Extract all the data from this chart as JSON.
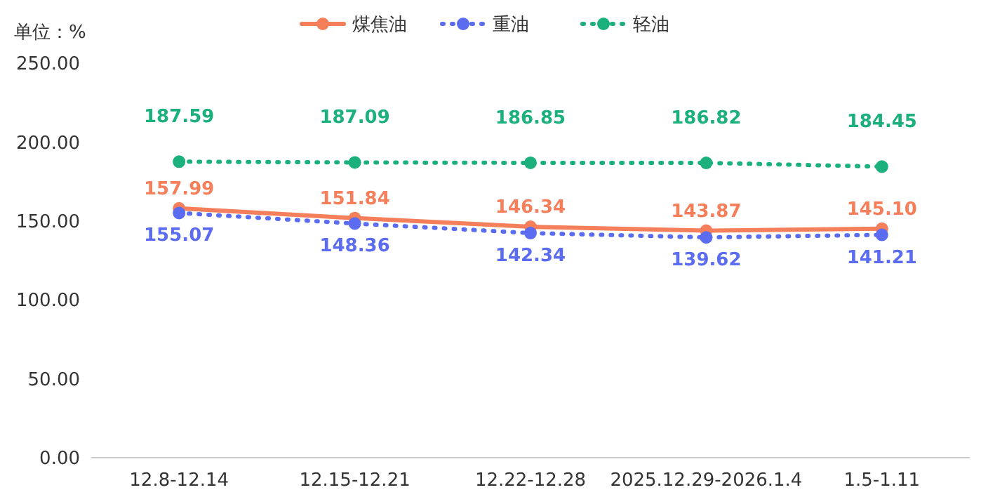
{
  "chart_data": {
    "type": "line",
    "ylabel": "单位：%",
    "categories": [
      "12.8-12.14",
      "12.15-12.21",
      "12.22-12.28",
      "2025.12.29-2026.1.4",
      "1.5-1.11"
    ],
    "ylim": [
      0,
      250
    ],
    "yticks": [
      {
        "value": 0,
        "label": "0.00"
      },
      {
        "value": 50,
        "label": "50.00"
      },
      {
        "value": 100,
        "label": "100.00"
      },
      {
        "value": 150,
        "label": "150.00"
      },
      {
        "value": 200,
        "label": "200.00"
      },
      {
        "value": 250,
        "label": "250.00"
      }
    ],
    "grid": false,
    "legend": "top",
    "marker": "circle",
    "series": [
      {
        "name": "煤焦油",
        "color": "#f47f5a",
        "line_style": "solid",
        "values": [
          157.99,
          151.84,
          146.34,
          143.87,
          145.1
        ],
        "value_labels": [
          "157.99",
          "151.84",
          "146.34",
          "143.87",
          "145.10"
        ]
      },
      {
        "name": "重油",
        "color": "#5b6cf0",
        "line_style": "dotted",
        "values": [
          155.07,
          148.36,
          142.34,
          139.62,
          141.21
        ],
        "value_labels": [
          "155.07",
          "148.36",
          "142.34",
          "139.62",
          "141.21"
        ]
      },
      {
        "name": "轻油",
        "color": "#1bb07c",
        "line_style": "dotted",
        "values": [
          187.59,
          187.09,
          186.85,
          186.82,
          184.45
        ],
        "value_labels": [
          "187.59",
          "187.09",
          "186.85",
          "186.82",
          "184.45"
        ]
      }
    ]
  }
}
